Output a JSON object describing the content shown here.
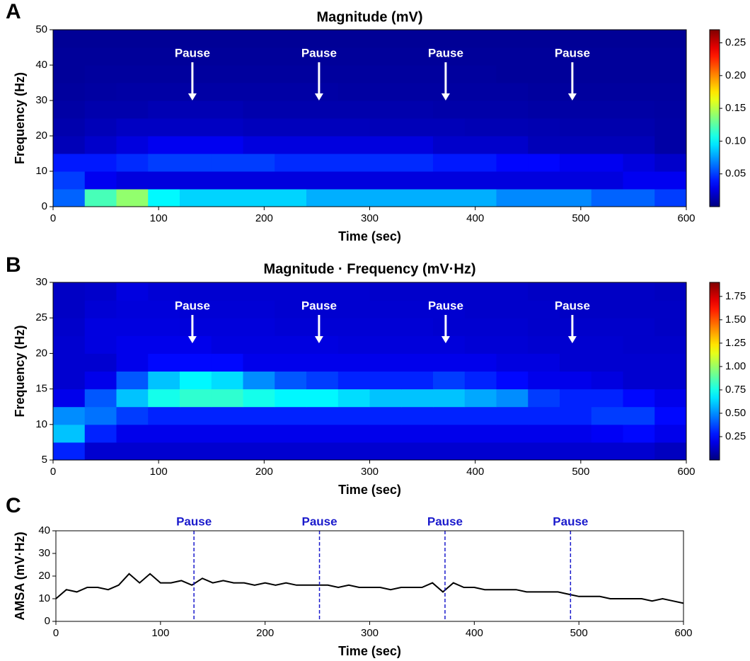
{
  "chart_data": [
    {
      "type": "heatmap",
      "panel": "A",
      "title": "Magnitude (mV)",
      "xlabel": "Time (sec)",
      "ylabel": "Frequency (Hz)",
      "colormap": "jet",
      "x": [
        15,
        45,
        75,
        105,
        135,
        165,
        195,
        225,
        255,
        285,
        315,
        345,
        375,
        405,
        435,
        465,
        495,
        525,
        555,
        585
      ],
      "y": [
        2.5,
        7.5,
        12.5,
        17.5,
        22.5,
        27.5,
        32.5,
        37.5,
        42.5,
        47.5
      ],
      "z": [
        [
          0.06,
          0.12,
          0.14,
          0.1,
          0.09,
          0.09,
          0.09,
          0.09,
          0.08,
          0.08,
          0.08,
          0.08,
          0.08,
          0.08,
          0.07,
          0.07,
          0.07,
          0.06,
          0.06,
          0.05
        ],
        [
          0.05,
          0.03,
          0.025,
          0.025,
          0.025,
          0.025,
          0.025,
          0.025,
          0.025,
          0.025,
          0.025,
          0.025,
          0.025,
          0.025,
          0.025,
          0.025,
          0.025,
          0.025,
          0.03,
          0.03
        ],
        [
          0.04,
          0.04,
          0.045,
          0.05,
          0.05,
          0.05,
          0.05,
          0.045,
          0.045,
          0.045,
          0.045,
          0.045,
          0.04,
          0.04,
          0.035,
          0.035,
          0.03,
          0.03,
          0.025,
          0.02
        ],
        [
          0.015,
          0.02,
          0.025,
          0.03,
          0.03,
          0.03,
          0.025,
          0.025,
          0.025,
          0.025,
          0.025,
          0.025,
          0.02,
          0.02,
          0.02,
          0.015,
          0.015,
          0.015,
          0.015,
          0.01
        ],
        [
          0.012,
          0.015,
          0.018,
          0.018,
          0.018,
          0.018,
          0.016,
          0.016,
          0.016,
          0.016,
          0.015,
          0.015,
          0.015,
          0.014,
          0.014,
          0.013,
          0.012,
          0.012,
          0.012,
          0.01
        ],
        [
          0.01,
          0.012,
          0.012,
          0.014,
          0.014,
          0.014,
          0.012,
          0.012,
          0.012,
          0.012,
          0.012,
          0.012,
          0.011,
          0.011,
          0.011,
          0.01,
          0.01,
          0.01,
          0.01,
          0.009
        ],
        [
          0.008,
          0.009,
          0.01,
          0.01,
          0.01,
          0.01,
          0.01,
          0.01,
          0.01,
          0.009,
          0.009,
          0.009,
          0.009,
          0.009,
          0.009,
          0.008,
          0.008,
          0.008,
          0.008,
          0.008
        ],
        [
          0.007,
          0.008,
          0.008,
          0.008,
          0.008,
          0.008,
          0.008,
          0.008,
          0.008,
          0.008,
          0.008,
          0.008,
          0.008,
          0.008,
          0.007,
          0.007,
          0.007,
          0.007,
          0.007,
          0.007
        ],
        [
          0.007,
          0.007,
          0.007,
          0.007,
          0.007,
          0.007,
          0.007,
          0.007,
          0.007,
          0.007,
          0.007,
          0.007,
          0.007,
          0.007,
          0.007,
          0.007,
          0.007,
          0.007,
          0.007,
          0.007
        ],
        [
          0.006,
          0.006,
          0.006,
          0.006,
          0.006,
          0.006,
          0.006,
          0.006,
          0.006,
          0.006,
          0.006,
          0.006,
          0.006,
          0.006,
          0.006,
          0.006,
          0.006,
          0.006,
          0.006,
          0.006
        ]
      ],
      "xlim": [
        0,
        600
      ],
      "xticks": [
        0,
        100,
        200,
        300,
        400,
        500,
        600
      ],
      "ylim": [
        0,
        50
      ],
      "yticks": [
        0,
        10,
        20,
        30,
        40,
        50
      ],
      "zlim": [
        0,
        0.27
      ],
      "zticks": [
        0.05,
        {
          "value": 0.1,
          "label": "0.10"
        },
        0.15,
        {
          "value": 0.2,
          "label": "0.20"
        },
        0.25
      ],
      "annotations": [
        {
          "x": 132,
          "text": "Pause"
        },
        {
          "x": 252,
          "text": "Pause"
        },
        {
          "x": 372,
          "text": "Pause"
        },
        {
          "x": 492,
          "text": "Pause"
        }
      ]
    },
    {
      "type": "heatmap",
      "panel": "B",
      "title": "Magnitude · Frequency (mV·Hz)",
      "xlabel": "Time (sec)",
      "ylabel": "Frequency (Hz)",
      "colormap": "jet",
      "x": [
        15,
        45,
        75,
        105,
        135,
        165,
        195,
        225,
        255,
        285,
        315,
        345,
        375,
        405,
        435,
        465,
        495,
        525,
        555,
        585
      ],
      "y": [
        6.25,
        8.75,
        11.25,
        13.75,
        16.25,
        18.75,
        21.25,
        23.75,
        26.25,
        28.75
      ],
      "z": [
        [
          0.3,
          0.15,
          0.15,
          0.15,
          0.15,
          0.15,
          0.15,
          0.15,
          0.15,
          0.15,
          0.15,
          0.15,
          0.15,
          0.15,
          0.15,
          0.15,
          0.15,
          0.15,
          0.15,
          0.12
        ],
        [
          0.6,
          0.3,
          0.2,
          0.2,
          0.2,
          0.2,
          0.2,
          0.2,
          0.2,
          0.2,
          0.2,
          0.2,
          0.2,
          0.2,
          0.2,
          0.2,
          0.2,
          0.22,
          0.25,
          0.2
        ],
        [
          0.5,
          0.45,
          0.35,
          0.3,
          0.3,
          0.3,
          0.3,
          0.3,
          0.3,
          0.3,
          0.3,
          0.3,
          0.3,
          0.3,
          0.3,
          0.3,
          0.3,
          0.35,
          0.35,
          0.25
        ],
        [
          0.2,
          0.4,
          0.6,
          0.75,
          0.8,
          0.8,
          0.75,
          0.7,
          0.7,
          0.65,
          0.6,
          0.6,
          0.6,
          0.55,
          0.5,
          0.35,
          0.3,
          0.3,
          0.25,
          0.2
        ],
        [
          0.15,
          0.2,
          0.4,
          0.6,
          0.7,
          0.65,
          0.5,
          0.4,
          0.35,
          0.3,
          0.3,
          0.3,
          0.35,
          0.3,
          0.25,
          0.2,
          0.2,
          0.18,
          0.15,
          0.15
        ],
        [
          0.15,
          0.15,
          0.2,
          0.25,
          0.25,
          0.25,
          0.2,
          0.2,
          0.2,
          0.2,
          0.2,
          0.2,
          0.2,
          0.2,
          0.18,
          0.18,
          0.15,
          0.15,
          0.15,
          0.15
        ],
        [
          0.15,
          0.18,
          0.2,
          0.2,
          0.2,
          0.18,
          0.18,
          0.18,
          0.18,
          0.17,
          0.17,
          0.17,
          0.17,
          0.16,
          0.16,
          0.15,
          0.15,
          0.15,
          0.14,
          0.14
        ],
        [
          0.14,
          0.18,
          0.18,
          0.18,
          0.17,
          0.17,
          0.17,
          0.16,
          0.16,
          0.16,
          0.16,
          0.16,
          0.15,
          0.15,
          0.15,
          0.14,
          0.14,
          0.14,
          0.14,
          0.13
        ],
        [
          0.13,
          0.16,
          0.17,
          0.17,
          0.16,
          0.16,
          0.16,
          0.15,
          0.15,
          0.15,
          0.15,
          0.15,
          0.15,
          0.14,
          0.14,
          0.14,
          0.13,
          0.13,
          0.13,
          0.13
        ],
        [
          0.13,
          0.14,
          0.18,
          0.16,
          0.15,
          0.15,
          0.15,
          0.15,
          0.15,
          0.15,
          0.14,
          0.14,
          0.14,
          0.14,
          0.14,
          0.13,
          0.13,
          0.13,
          0.13,
          0.12
        ]
      ],
      "xlim": [
        0,
        600
      ],
      "xticks": [
        0,
        100,
        200,
        300,
        400,
        500,
        600
      ],
      "ylim": [
        5,
        30
      ],
      "yticks": [
        5,
        10,
        15,
        20,
        25,
        30
      ],
      "zlim": [
        0,
        1.9
      ],
      "zticks": [
        0.25,
        {
          "value": 0.5,
          "label": "0.50"
        },
        0.75,
        {
          "value": 1,
          "label": "1.00"
        },
        1.25,
        {
          "value": 1.5,
          "label": "1.50"
        },
        1.75
      ],
      "annotations": [
        {
          "x": 132,
          "text": "Pause"
        },
        {
          "x": 252,
          "text": "Pause"
        },
        {
          "x": 372,
          "text": "Pause"
        },
        {
          "x": 492,
          "text": "Pause"
        }
      ]
    },
    {
      "type": "line",
      "panel": "C",
      "xlabel": "Time (sec)",
      "ylabel": "AMSA (mV·Hz)",
      "color": "#000000",
      "annotation_color": "#1a1acc",
      "x": [
        0,
        10,
        20,
        30,
        40,
        50,
        60,
        70,
        80,
        90,
        100,
        110,
        120,
        130,
        140,
        150,
        160,
        170,
        180,
        190,
        200,
        210,
        220,
        230,
        240,
        250,
        260,
        270,
        280,
        290,
        300,
        310,
        320,
        330,
        340,
        350,
        360,
        370,
        380,
        390,
        400,
        410,
        420,
        430,
        440,
        450,
        460,
        470,
        480,
        490,
        500,
        510,
        520,
        530,
        540,
        550,
        560,
        570,
        580,
        590,
        600
      ],
      "values": [
        10,
        14,
        13,
        15,
        15,
        14,
        16,
        21,
        17,
        21,
        17,
        17,
        18,
        16,
        19,
        17,
        18,
        17,
        17,
        16,
        17,
        16,
        17,
        16,
        16,
        16,
        16,
        15,
        16,
        15,
        15,
        15,
        14,
        15,
        15,
        15,
        17,
        13,
        17,
        15,
        15,
        14,
        14,
        14,
        14,
        13,
        13,
        13,
        13,
        12,
        11,
        11,
        11,
        10,
        10,
        10,
        10,
        9,
        10,
        9,
        8
      ],
      "xlim": [
        0,
        600
      ],
      "xticks": [
        0,
        100,
        200,
        300,
        400,
        500,
        600
      ],
      "ylim": [
        0,
        40
      ],
      "yticks": [
        0,
        10,
        20,
        30,
        40
      ],
      "annotations": [
        {
          "x": 132,
          "text": "Pause"
        },
        {
          "x": 252,
          "text": "Pause"
        },
        {
          "x": 372,
          "text": "Pause"
        },
        {
          "x": 492,
          "text": "Pause"
        }
      ]
    }
  ]
}
